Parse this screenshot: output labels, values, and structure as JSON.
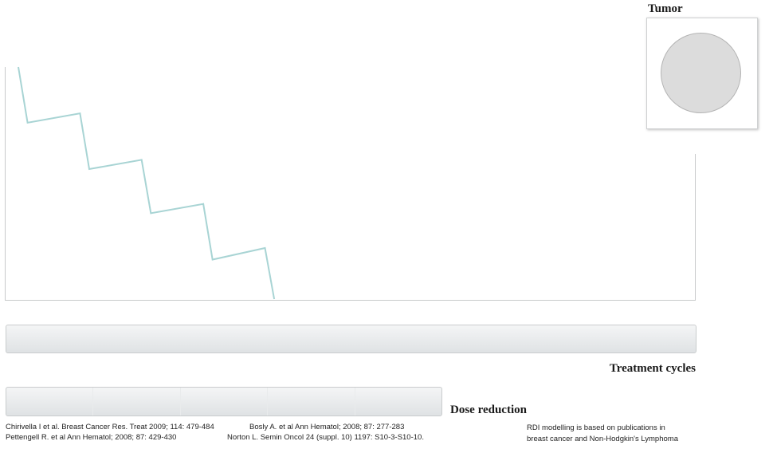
{
  "tumor": {
    "title": "Tumor"
  },
  "chart_data": {
    "type": "line",
    "title": "",
    "xlabel": "Treatment cycles",
    "ylabel": "",
    "grid": false,
    "legend": "none",
    "series": [
      {
        "color": "#a8d4d4",
        "x": [
          0,
          0.15,
          1.0,
          1.15,
          2.0,
          2.15,
          3.0,
          3.15,
          4.0,
          4.15
        ],
        "y": [
          1.0,
          0.76,
          0.8,
          0.56,
          0.6,
          0.37,
          0.41,
          0.17,
          0.22,
          0.0
        ]
      }
    ],
    "xlim": [
      0,
      11
    ],
    "ylim": [
      0,
      1
    ]
  },
  "controls": {
    "treatment_cycles_label": "Treatment cycles",
    "dose_reduction_label": "Dose reduction",
    "dose_segments": 5
  },
  "references": {
    "ref1": "Chirivella I et al. Breast Cancer Res. Treat 2009; 114: 479-484",
    "ref2": "Bosly A. et al Ann Hematol; 2008; 87: 277-283",
    "ref3": "Pettengell R. et al Ann Hematol; 2008; 87: 429-430",
    "ref4": "Norton L. Semin Oncol 24 (suppl. 10) 1197: S10-3-S10-10.",
    "note_line1": "RDI modelling is based on publications in",
    "note_line2": "breast cancer and Non-Hodgkin's Lymphoma"
  },
  "colors": {
    "curve": "#a8d4d4",
    "bar": "#e2e5e7",
    "border": "#c8cacb"
  }
}
